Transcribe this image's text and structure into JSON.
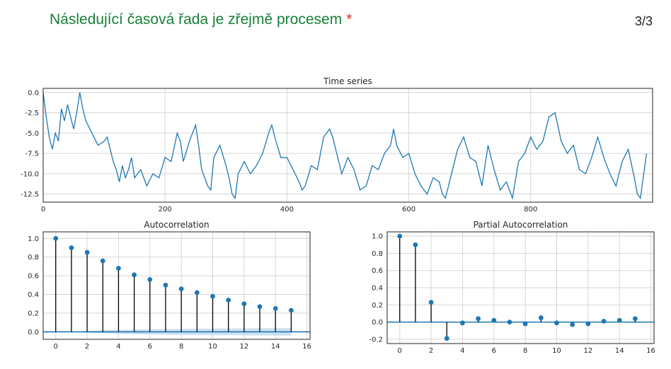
{
  "question": {
    "title": "Následující časová řada je zřejmě procesem",
    "required_mark": "*",
    "score": "3/3"
  },
  "colors": {
    "question_title": "#188038",
    "required": "#d93025",
    "series": "#1f77b4",
    "confidence_band": "#a6c8e6"
  },
  "chart_data": [
    {
      "type": "line",
      "title": "Time series",
      "xlabel": "",
      "ylabel": "",
      "xlim": [
        0,
        1000
      ],
      "ylim": [
        -13.5,
        0.5
      ],
      "xticks": [
        0,
        200,
        400,
        600,
        800
      ],
      "yticks": [
        0.0,
        -2.5,
        -5.0,
        -7.5,
        -10.0,
        -12.5
      ],
      "grid": true,
      "series": [
        {
          "x": [
            0,
            5,
            10,
            15,
            20,
            25,
            30,
            35,
            40,
            45,
            50,
            55,
            60,
            65,
            70,
            80,
            90,
            100,
            105,
            110,
            115,
            120,
            125,
            130,
            135,
            140,
            145,
            150,
            160,
            170,
            180,
            190,
            200,
            210,
            220,
            225,
            230,
            240,
            250,
            255,
            260,
            270,
            275,
            280,
            290,
            300,
            305,
            310,
            315,
            320,
            330,
            340,
            350,
            360,
            370,
            375,
            380,
            390,
            400,
            410,
            420,
            425,
            430,
            440,
            450,
            460,
            470,
            475,
            480,
            490,
            500,
            510,
            520,
            530,
            540,
            550,
            560,
            570,
            575,
            580,
            590,
            600,
            610,
            620,
            630,
            640,
            650,
            655,
            660,
            670,
            680,
            690,
            700,
            710,
            720,
            730,
            740,
            750,
            760,
            770,
            780,
            790,
            800,
            810,
            820,
            830,
            840,
            850,
            860,
            870,
            880,
            890,
            900,
            910,
            920,
            930,
            940,
            950,
            960,
            970,
            975,
            980,
            990
          ],
          "y": [
            0.0,
            -3.0,
            -5.5,
            -7.0,
            -5.0,
            -6.0,
            -2.0,
            -3.5,
            -1.5,
            -3.0,
            -4.5,
            -2.5,
            0.0,
            -2.0,
            -3.5,
            -5.0,
            -6.5,
            -6.0,
            -5.5,
            -7.0,
            -8.5,
            -9.5,
            -11.0,
            -9.0,
            -10.5,
            -9.5,
            -8.0,
            -10.5,
            -9.5,
            -11.5,
            -10.0,
            -10.5,
            -8.0,
            -8.5,
            -5.0,
            -6.0,
            -8.5,
            -6.0,
            -4.0,
            -6.5,
            -9.5,
            -11.5,
            -12.0,
            -8.0,
            -6.5,
            -9.0,
            -10.5,
            -12.5,
            -13.0,
            -10.0,
            -8.5,
            -10.0,
            -9.0,
            -7.5,
            -5.0,
            -4.0,
            -5.5,
            -8.0,
            -8.0,
            -9.5,
            -11.0,
            -12.0,
            -11.5,
            -9.0,
            -9.5,
            -5.5,
            -4.5,
            -5.5,
            -7.0,
            -10.0,
            -8.0,
            -9.5,
            -12.0,
            -11.5,
            -9.0,
            -9.5,
            -7.5,
            -6.5,
            -4.5,
            -6.5,
            -8.0,
            -7.5,
            -10.0,
            -11.5,
            -12.5,
            -10.5,
            -11.0,
            -12.5,
            -13.0,
            -10.0,
            -7.0,
            -5.5,
            -8.0,
            -8.5,
            -11.5,
            -6.5,
            -9.5,
            -12.0,
            -11.0,
            -13.0,
            -8.5,
            -7.5,
            -5.5,
            -7.0,
            -6.0,
            -3.0,
            -2.5,
            -6.0,
            -7.5,
            -6.5,
            -9.5,
            -10.0,
            -8.0,
            -5.5,
            -8.0,
            -10.0,
            -11.5,
            -8.5,
            -7.0,
            -10.5,
            -12.5,
            -13.0,
            -7.5
          ]
        }
      ]
    },
    {
      "type": "stem",
      "title": "Autocorrelation",
      "xlabel": "",
      "ylabel": "",
      "xlim": [
        -0.8,
        16.2
      ],
      "ylim": [
        -0.08,
        1.07
      ],
      "xticks": [
        0,
        2,
        4,
        6,
        8,
        10,
        12,
        14,
        16
      ],
      "yticks": [
        0.0,
        0.2,
        0.4,
        0.6,
        0.8,
        1.0
      ],
      "grid": true,
      "lags": [
        0,
        1,
        2,
        3,
        4,
        5,
        6,
        7,
        8,
        9,
        10,
        11,
        12,
        13,
        14,
        15
      ],
      "values": [
        1.0,
        0.9,
        0.85,
        0.76,
        0.68,
        0.61,
        0.56,
        0.5,
        0.46,
        0.42,
        0.38,
        0.34,
        0.3,
        0.27,
        0.25,
        0.23
      ],
      "confidence_band_upper": [
        0.0,
        0.0,
        0.01,
        0.015,
        0.02,
        0.025,
        0.028,
        0.03,
        0.032,
        0.034,
        0.036,
        0.037,
        0.038,
        0.039,
        0.04,
        0.04
      ],
      "confidence_band_lower": [
        0.0,
        0.0,
        -0.01,
        -0.015,
        -0.02,
        -0.025,
        -0.028,
        -0.03,
        -0.032,
        -0.034,
        -0.036,
        -0.037,
        -0.038,
        -0.039,
        -0.04,
        -0.04
      ]
    },
    {
      "type": "stem",
      "title": "Partial Autocorrelation",
      "xlabel": "",
      "ylabel": "",
      "xlim": [
        -0.8,
        16.2
      ],
      "ylim": [
        -0.25,
        1.05
      ],
      "xticks": [
        0,
        2,
        4,
        6,
        8,
        10,
        12,
        14,
        16
      ],
      "yticks": [
        -0.2,
        0.0,
        0.2,
        0.4,
        0.6,
        0.8,
        1.0
      ],
      "grid": true,
      "lags": [
        0,
        1,
        2,
        3,
        4,
        5,
        6,
        7,
        8,
        9,
        10,
        11,
        12,
        13,
        14,
        15
      ],
      "values": [
        1.0,
        0.9,
        0.23,
        -0.19,
        -0.01,
        0.04,
        0.02,
        0.0,
        -0.02,
        0.05,
        -0.01,
        -0.03,
        -0.02,
        0.01,
        0.02,
        0.04
      ]
    }
  ]
}
